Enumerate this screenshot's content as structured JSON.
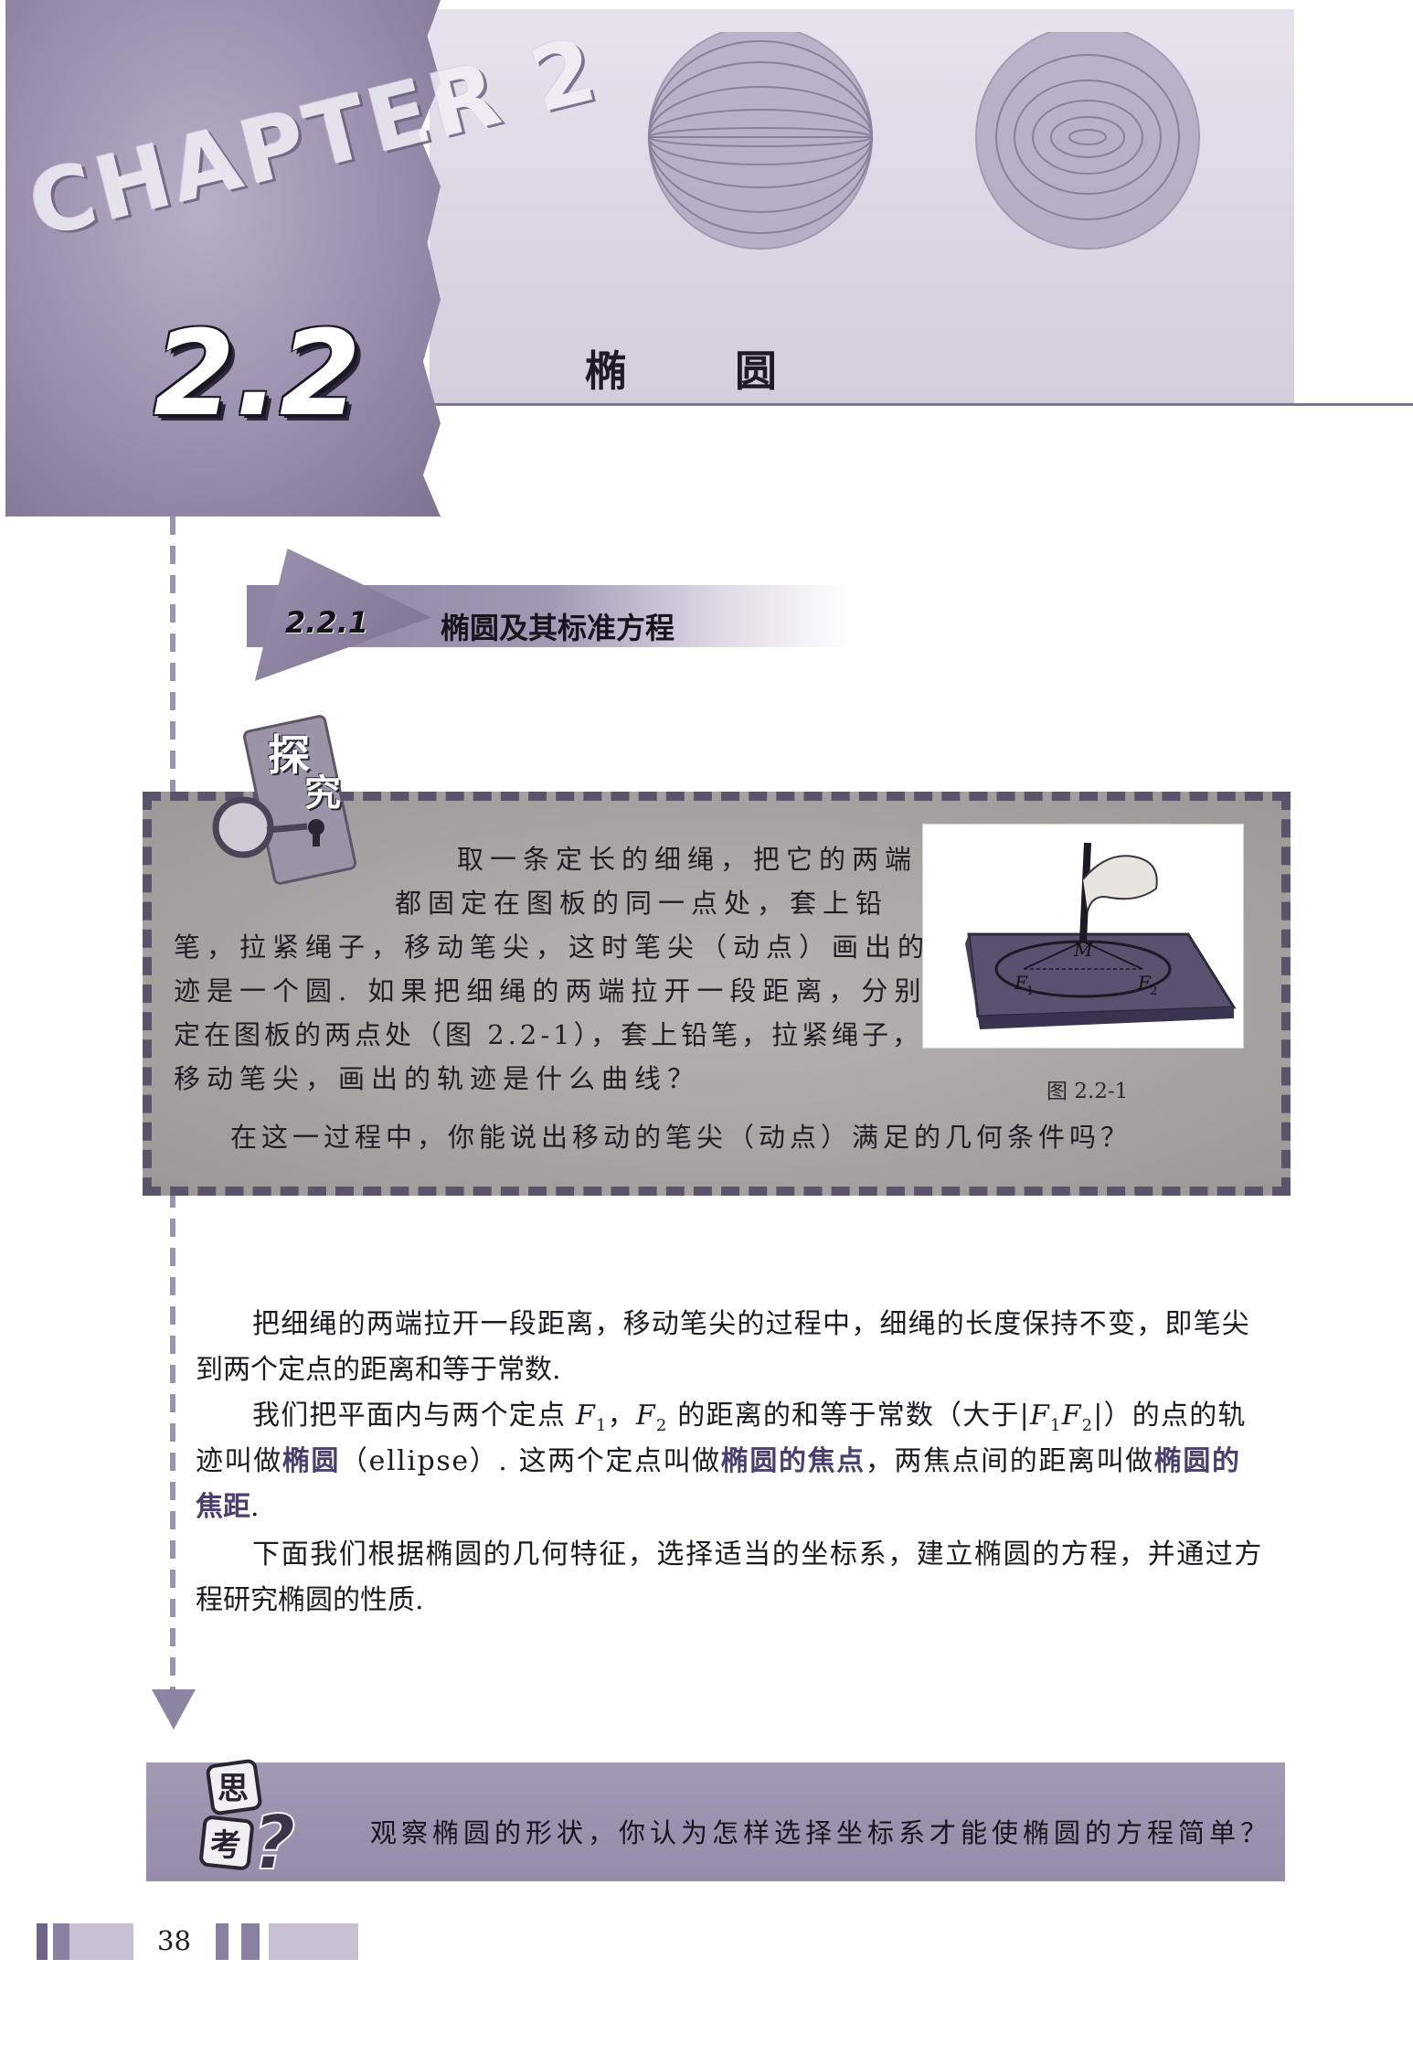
{
  "header": {
    "chapter_word": "CHAPTER 2",
    "section_number": "2.2",
    "section_title": "椭圆"
  },
  "subsection": {
    "number": "2.2.1",
    "title": "椭圆及其标准方程"
  },
  "explore": {
    "label_1": "探",
    "label_2": "究",
    "lines": [
      "取一条定长的细绳，把它的两端",
      "都固定在图板的同一点处，套上铅",
      "笔，拉紧绳子，移动笔尖，这时笔尖（动点）画出的轨",
      "迹是一个圆. 如果把细绳的两端拉开一段距离，分别固",
      "定在图板的两点处（图 2.2-1），套上铅笔，拉紧绳子，",
      "移动笔尖，画出的轨迹是什么曲线？"
    ],
    "question": "在这一过程中，你能说出移动的笔尖（动点）满足的几何条件吗？",
    "figure": {
      "caption": "图 2.2-1",
      "point_m": "M",
      "focus_1": "F",
      "focus_1_sub": "1",
      "focus_2": "F",
      "focus_2_sub": "2"
    }
  },
  "body": {
    "p1_line1": "把细绳的两端拉开一段距离，移动笔尖的过程中，细绳的长度保持不变，即笔尖",
    "p1_line2": "到两个定点的距离和等于常数.",
    "p2_line1_a": "我们把平面内与两个定点 ",
    "p2_f1": "F",
    "p2_sub1": "1",
    "p2_sep": "，",
    "p2_f2": "F",
    "p2_sub2": "2",
    "p2_line1_b": " 的距离的和等于常数（大于|",
    "p2_abs_f1": "F",
    "p2_abs_sub1": "1",
    "p2_abs_f2": "F",
    "p2_abs_sub2": "2",
    "p2_line1_c": "|）的点的轨",
    "p2_line2_a": "迹叫做",
    "p2_term_ellipse": "椭圆",
    "p2_line2_b": "（ellipse）. 这两个定点叫做",
    "p2_term_foci": "椭圆的焦点",
    "p2_line2_c": "，两焦点间的距离叫做",
    "p2_term_focal_a": "椭圆的",
    "p2_term_focal_b": "焦距",
    "p2_line3_end": ".",
    "p3_line1": "下面我们根据椭圆的几何特征，选择适当的坐标系，建立椭圆的方程，并通过方",
    "p3_line2": "程研究椭圆的性质."
  },
  "think": {
    "label_1": "思",
    "label_2": "考",
    "label_mark": "?",
    "text": "观察椭圆的形状，你认为怎样选择坐标系才能使椭圆的方程简单？"
  },
  "footer": {
    "page_number": "38"
  },
  "colors": {
    "accent_purple": "#9a8fae",
    "highlight_text": "#4b3f6e",
    "explore_gray": "#a8a4a3"
  }
}
